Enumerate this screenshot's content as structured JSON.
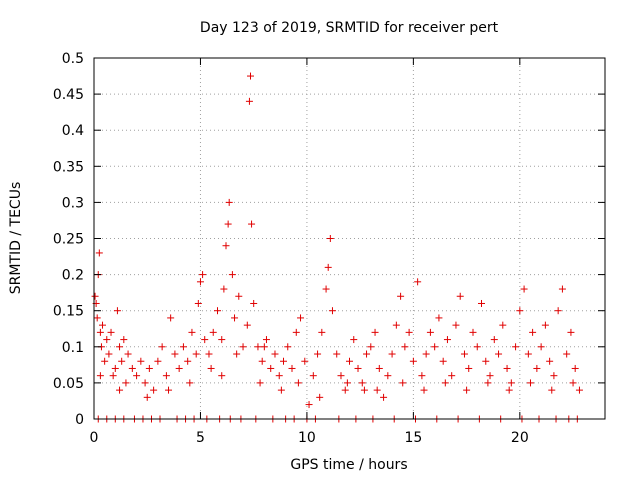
{
  "chart_data": {
    "type": "scatter",
    "title": "Day 123 of 2019, SRMTID for receiver pert",
    "xlabel": "GPS time / hours",
    "ylabel": "SRMTID / TECUs",
    "xlim": [
      0,
      24
    ],
    "ylim": [
      0,
      0.5
    ],
    "xticks": [
      0,
      5,
      10,
      15,
      20
    ],
    "yticks": [
      0,
      0.05,
      0.1,
      0.15,
      0.2,
      0.25,
      0.3,
      0.35,
      0.4,
      0.45,
      0.5
    ],
    "grid": true,
    "marker": "plus",
    "color": "#e00000",
    "series": [
      {
        "values": [
          [
            0.05,
            0.17
          ],
          [
            0.1,
            0.16
          ],
          [
            0.15,
            0.14
          ],
          [
            0.2,
            0.2
          ],
          [
            0.25,
            0.23
          ],
          [
            0.3,
            0.12
          ],
          [
            0.35,
            0.1
          ],
          [
            0.4,
            0.13
          ],
          [
            0.5,
            0.08
          ],
          [
            0.6,
            0.11
          ],
          [
            0.7,
            0.09
          ],
          [
            0.8,
            0.12
          ],
          [
            0.9,
            0.06
          ],
          [
            1.0,
            0.07
          ],
          [
            1.1,
            0.15
          ],
          [
            1.2,
            0.1
          ],
          [
            1.3,
            0.08
          ],
          [
            1.4,
            0.11
          ],
          [
            1.5,
            0.05
          ],
          [
            1.6,
            0.09
          ],
          [
            1.8,
            0.07
          ],
          [
            2.0,
            0.06
          ],
          [
            2.2,
            0.08
          ],
          [
            2.4,
            0.05
          ],
          [
            2.6,
            0.07
          ],
          [
            2.8,
            0.04
          ],
          [
            3.0,
            0.08
          ],
          [
            3.2,
            0.1
          ],
          [
            3.4,
            0.06
          ],
          [
            3.6,
            0.14
          ],
          [
            3.8,
            0.09
          ],
          [
            4.0,
            0.07
          ],
          [
            4.2,
            0.1
          ],
          [
            4.4,
            0.08
          ],
          [
            4.6,
            0.12
          ],
          [
            4.8,
            0.09
          ],
          [
            4.9,
            0.16
          ],
          [
            5.0,
            0.19
          ],
          [
            5.1,
            0.2
          ],
          [
            5.2,
            0.11
          ],
          [
            5.4,
            0.09
          ],
          [
            5.6,
            0.12
          ],
          [
            5.8,
            0.15
          ],
          [
            6.0,
            0.11
          ],
          [
            6.1,
            0.18
          ],
          [
            6.2,
            0.24
          ],
          [
            6.3,
            0.27
          ],
          [
            6.35,
            0.3
          ],
          [
            6.5,
            0.2
          ],
          [
            6.6,
            0.14
          ],
          [
            6.8,
            0.17
          ],
          [
            7.0,
            0.1
          ],
          [
            7.2,
            0.13
          ],
          [
            7.3,
            0.44
          ],
          [
            7.35,
            0.475
          ],
          [
            7.4,
            0.27
          ],
          [
            7.5,
            0.16
          ],
          [
            7.7,
            0.1
          ],
          [
            7.9,
            0.08
          ],
          [
            8.1,
            0.11
          ],
          [
            8.3,
            0.07
          ],
          [
            8.5,
            0.09
          ],
          [
            8.7,
            0.06
          ],
          [
            8.9,
            0.08
          ],
          [
            9.1,
            0.1
          ],
          [
            9.3,
            0.07
          ],
          [
            9.5,
            0.12
          ],
          [
            9.7,
            0.14
          ],
          [
            9.9,
            0.08
          ],
          [
            10.1,
            0.02
          ],
          [
            10.3,
            0.06
          ],
          [
            10.5,
            0.09
          ],
          [
            10.7,
            0.12
          ],
          [
            10.9,
            0.18
          ],
          [
            11.0,
            0.21
          ],
          [
            11.1,
            0.25
          ],
          [
            11.2,
            0.15
          ],
          [
            11.4,
            0.09
          ],
          [
            11.6,
            0.06
          ],
          [
            11.8,
            0.04
          ],
          [
            12.0,
            0.08
          ],
          [
            12.2,
            0.11
          ],
          [
            12.4,
            0.07
          ],
          [
            12.6,
            0.05
          ],
          [
            12.8,
            0.09
          ],
          [
            13.0,
            0.1
          ],
          [
            13.2,
            0.12
          ],
          [
            13.4,
            0.07
          ],
          [
            13.6,
            0.03
          ],
          [
            13.8,
            0.06
          ],
          [
            14.0,
            0.09
          ],
          [
            14.2,
            0.13
          ],
          [
            14.4,
            0.17
          ],
          [
            14.6,
            0.1
          ],
          [
            14.8,
            0.12
          ],
          [
            15.0,
            0.08
          ],
          [
            15.2,
            0.19
          ],
          [
            15.4,
            0.06
          ],
          [
            15.6,
            0.09
          ],
          [
            15.8,
            0.12
          ],
          [
            16.0,
            0.1
          ],
          [
            16.2,
            0.14
          ],
          [
            16.4,
            0.08
          ],
          [
            16.6,
            0.11
          ],
          [
            16.8,
            0.06
          ],
          [
            17.0,
            0.13
          ],
          [
            17.2,
            0.17
          ],
          [
            17.4,
            0.09
          ],
          [
            17.6,
            0.07
          ],
          [
            17.8,
            0.12
          ],
          [
            18.0,
            0.1
          ],
          [
            18.2,
            0.16
          ],
          [
            18.4,
            0.08
          ],
          [
            18.6,
            0.06
          ],
          [
            18.8,
            0.11
          ],
          [
            19.0,
            0.09
          ],
          [
            19.2,
            0.13
          ],
          [
            19.4,
            0.07
          ],
          [
            19.6,
            0.05
          ],
          [
            19.8,
            0.1
          ],
          [
            20.0,
            0.15
          ],
          [
            20.2,
            0.18
          ],
          [
            20.4,
            0.09
          ],
          [
            20.6,
            0.12
          ],
          [
            20.8,
            0.07
          ],
          [
            21.0,
            0.1
          ],
          [
            21.2,
            0.13
          ],
          [
            21.4,
            0.08
          ],
          [
            21.6,
            0.06
          ],
          [
            21.8,
            0.15
          ],
          [
            22.0,
            0.18
          ],
          [
            22.2,
            0.09
          ],
          [
            22.4,
            0.12
          ],
          [
            22.6,
            0.07
          ],
          [
            22.8,
            0.04
          ],
          [
            0.3,
            0.06
          ],
          [
            1.2,
            0.04
          ],
          [
            2.5,
            0.03
          ],
          [
            4.5,
            0.05
          ],
          [
            5.5,
            0.07
          ],
          [
            6.0,
            0.06
          ],
          [
            7.8,
            0.05
          ],
          [
            8.8,
            0.04
          ],
          [
            9.6,
            0.05
          ],
          [
            10.6,
            0.03
          ],
          [
            11.9,
            0.05
          ],
          [
            12.7,
            0.04
          ],
          [
            14.5,
            0.05
          ],
          [
            15.5,
            0.04
          ],
          [
            16.5,
            0.05
          ],
          [
            17.5,
            0.04
          ],
          [
            18.5,
            0.05
          ],
          [
            19.5,
            0.04
          ],
          [
            20.5,
            0.05
          ],
          [
            21.5,
            0.04
          ],
          [
            22.5,
            0.05
          ],
          [
            3.5,
            0.04
          ],
          [
            13.3,
            0.04
          ],
          [
            6.7,
            0.09
          ],
          [
            8.0,
            0.1
          ],
          [
            9.0,
            0.0
          ],
          [
            0.2,
            0.0
          ],
          [
            0.6,
            0.0
          ],
          [
            1.0,
            0.0
          ],
          [
            1.4,
            0.0
          ],
          [
            1.9,
            0.0
          ],
          [
            2.3,
            0.0
          ],
          [
            2.7,
            0.0
          ],
          [
            3.1,
            0.0
          ],
          [
            3.9,
            0.0
          ],
          [
            4.3,
            0.0
          ],
          [
            4.7,
            0.0
          ],
          [
            5.3,
            0.0
          ],
          [
            5.9,
            0.0
          ],
          [
            6.4,
            0.0
          ],
          [
            6.9,
            0.0
          ],
          [
            7.6,
            0.0
          ],
          [
            8.4,
            0.0
          ],
          [
            9.4,
            0.0
          ],
          [
            10.0,
            0.0
          ],
          [
            10.4,
            0.0
          ],
          [
            11.5,
            0.0
          ],
          [
            12.3,
            0.0
          ],
          [
            13.1,
            0.0
          ],
          [
            14.1,
            0.0
          ],
          [
            15.1,
            0.0
          ],
          [
            16.1,
            0.0
          ],
          [
            17.1,
            0.0
          ],
          [
            18.1,
            0.0
          ],
          [
            19.1,
            0.0
          ],
          [
            20.1,
            0.0
          ],
          [
            20.9,
            0.0
          ],
          [
            21.7,
            0.0
          ],
          [
            22.3,
            0.0
          ],
          [
            22.7,
            0.0
          ]
        ]
      }
    ]
  }
}
